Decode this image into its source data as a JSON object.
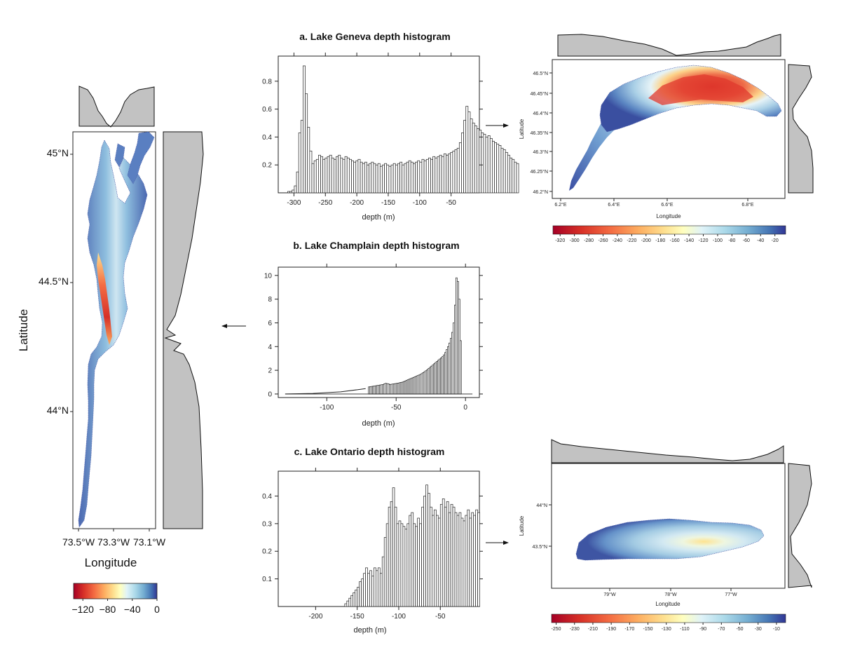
{
  "chart_data": [
    {
      "id": "geneva-hist",
      "type": "bar",
      "title": "a. Lake Geneva depth histogram",
      "xlabel": "depth (m)",
      "ylabel": "",
      "xlim": [
        -325,
        -5
      ],
      "ylim": [
        0,
        0.98
      ],
      "x_ticks": [
        "-300",
        "-250",
        "-200",
        "-150",
        "-100",
        "-50"
      ],
      "y_ticks": [
        "0.2",
        "0.4",
        "0.6",
        "0.8"
      ],
      "bin_start": -310,
      "bin_width": 3.5,
      "values": [
        0.01,
        0.01,
        0.02,
        0.05,
        0.15,
        0.43,
        0.52,
        0.91,
        0.71,
        0.47,
        0.3,
        0.21,
        0.23,
        0.24,
        0.27,
        0.26,
        0.24,
        0.25,
        0.26,
        0.27,
        0.25,
        0.24,
        0.26,
        0.27,
        0.25,
        0.24,
        0.26,
        0.25,
        0.24,
        0.23,
        0.22,
        0.23,
        0.24,
        0.22,
        0.21,
        0.22,
        0.2,
        0.21,
        0.22,
        0.21,
        0.2,
        0.21,
        0.19,
        0.2,
        0.21,
        0.2,
        0.19,
        0.2,
        0.21,
        0.2,
        0.21,
        0.22,
        0.2,
        0.21,
        0.22,
        0.23,
        0.22,
        0.21,
        0.22,
        0.23,
        0.22,
        0.24,
        0.23,
        0.24,
        0.25,
        0.24,
        0.26,
        0.25,
        0.26,
        0.27,
        0.26,
        0.28,
        0.27,
        0.28,
        0.29,
        0.3,
        0.31,
        0.32,
        0.36,
        0.43,
        0.52,
        0.62,
        0.58,
        0.53,
        0.5,
        0.48,
        0.46,
        0.45,
        0.43,
        0.42,
        0.4,
        0.41,
        0.39,
        0.37,
        0.36,
        0.35,
        0.34,
        0.32,
        0.31,
        0.29,
        0.27,
        0.25,
        0.24,
        0.22,
        0.21
      ]
    },
    {
      "id": "champlain-hist",
      "type": "bar",
      "title": "b. Lake Champlain depth histogram",
      "xlabel": "depth (m)",
      "ylabel": "",
      "xlim": [
        -135,
        10
      ],
      "ylim": [
        -0.3,
        10.7
      ],
      "x_ticks": [
        "-100",
        "-50",
        "0"
      ],
      "y_ticks": [
        "0",
        "2",
        "4",
        "6",
        "8",
        "10"
      ],
      "bin_start": -70,
      "bin_width": 1,
      "values": [
        0.6,
        0.62,
        0.64,
        0.66,
        0.68,
        0.7,
        0.72,
        0.74,
        0.76,
        0.78,
        0.8,
        0.85,
        0.9,
        0.88,
        0.86,
        0.8,
        0.82,
        0.84,
        0.86,
        0.88,
        0.9,
        0.92,
        0.95,
        0.98,
        1.0,
        1.05,
        1.1,
        1.15,
        1.2,
        1.25,
        1.3,
        1.35,
        1.4,
        1.45,
        1.5,
        1.55,
        1.6,
        1.65,
        1.72,
        1.8,
        1.88,
        1.96,
        2.05,
        2.15,
        2.25,
        2.35,
        2.45,
        2.55,
        2.65,
        2.75,
        2.85,
        2.95,
        3.05,
        3.15,
        3.3,
        3.5,
        3.75,
        4.0,
        4.3,
        4.7,
        5.2,
        6.0,
        7.5,
        9.8,
        9.5,
        8.0,
        4.5
      ],
      "baseline_curve": [
        [
          -130,
          0
        ],
        [
          -110,
          0.05
        ],
        [
          -90,
          0.18
        ],
        [
          -72,
          0.45
        ]
      ]
    },
    {
      "id": "ontario-hist",
      "type": "bar",
      "title": "c. Lake Ontario depth histogram",
      "xlabel": "depth (m)",
      "ylabel": "",
      "xlim": [
        -245,
        -3
      ],
      "ylim": [
        0,
        0.49
      ],
      "x_ticks": [
        "-200",
        "-150",
        "-100",
        "-50"
      ],
      "y_ticks": [
        "0.1",
        "0.2",
        "0.3",
        "0.4"
      ],
      "bin_start": -175,
      "bin_width": 2.5,
      "values": [
        0,
        0,
        0,
        0,
        0.01,
        0.02,
        0.03,
        0.04,
        0.05,
        0.06,
        0.07,
        0.09,
        0.1,
        0.12,
        0.14,
        0.12,
        0.13,
        0.11,
        0.14,
        0.13,
        0.14,
        0.12,
        0.18,
        0.25,
        0.3,
        0.36,
        0.38,
        0.43,
        0.36,
        0.3,
        0.31,
        0.3,
        0.29,
        0.28,
        0.3,
        0.33,
        0.34,
        0.3,
        0.29,
        0.32,
        0.3,
        0.36,
        0.4,
        0.44,
        0.41,
        0.36,
        0.33,
        0.35,
        0.33,
        0.32,
        0.37,
        0.39,
        0.36,
        0.38,
        0.34,
        0.37,
        0.36,
        0.34,
        0.33,
        0.34,
        0.32,
        0.31,
        0.33,
        0.35,
        0.32,
        0.34,
        0.33,
        0.35,
        0.34
      ]
    },
    {
      "id": "geneva-map",
      "type": "heatmap",
      "xlabel": "Longitude",
      "ylabel": "Latitude",
      "x_ticks": [
        "6.2°E",
        "6.4°E",
        "6.6°E",
        "6.8°E"
      ],
      "y_ticks": [
        "46.2°N",
        "46.25°N",
        "46.3°N",
        "46.35°N",
        "46.4°N",
        "46.45°N",
        "46.5°N"
      ],
      "colorbar_ticks": [
        "-320",
        "-300",
        "-280",
        "-260",
        "-240",
        "-220",
        "-200",
        "-180",
        "-160",
        "-140",
        "-120",
        "-100",
        "-80",
        "-60",
        "-40",
        "-20"
      ],
      "colorbar_range": [
        -330,
        -5
      ]
    },
    {
      "id": "champlain-map",
      "type": "heatmap",
      "xlabel": "Longitude",
      "ylabel": "Latitude",
      "x_ticks": [
        "73.5°W",
        "73.3°W",
        "73.1°W"
      ],
      "y_ticks": [
        "45°N",
        "44.5°N",
        "44°N"
      ],
      "colorbar_ticks": [
        "−120",
        "−80",
        "−40",
        "0"
      ],
      "colorbar_range": [
        -135,
        0
      ]
    },
    {
      "id": "ontario-map",
      "type": "heatmap",
      "xlabel": "Longitude",
      "ylabel": "Latitude",
      "x_ticks": [
        "79°W",
        "78°W",
        "77°W"
      ],
      "y_ticks": [
        "44°N",
        "43.5°N"
      ],
      "colorbar_ticks": [
        "-250",
        "-230",
        "-210",
        "-190",
        "-170",
        "-150",
        "-130",
        "-110",
        "-90",
        "-70",
        "-50",
        "-30",
        "-10"
      ],
      "colorbar_range": [
        -255,
        0
      ]
    }
  ],
  "colors": {
    "deep": "#b2182b",
    "mid_deep": "#f46d43",
    "mid": "#fee090",
    "light": "#e0f3f8",
    "shallow": "#74add1",
    "surface": "#313695",
    "profile_fill": "#c2c2c2"
  }
}
